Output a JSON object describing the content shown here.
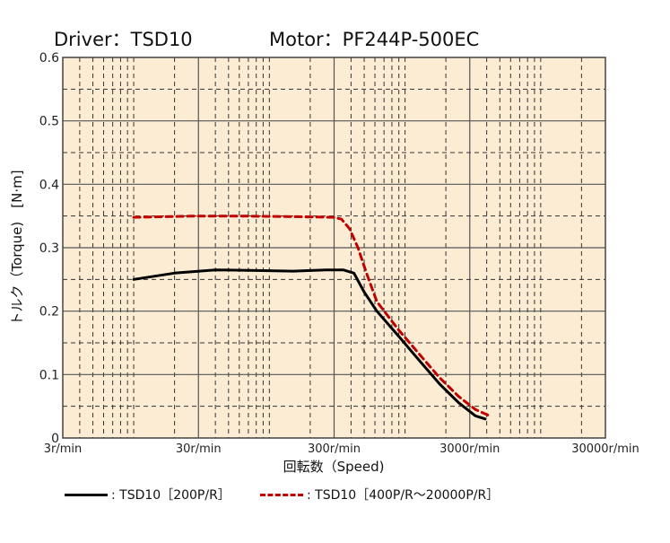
{
  "header": {
    "driver": "Driver：TSD10",
    "motor": "Motor：PF244P-500EC"
  },
  "chart_data": {
    "type": "line",
    "title": "",
    "xlabel": "回転数（Speed)",
    "ylabel": "トルク（Torque)　[N·m]",
    "x_scale": "log",
    "xlim": [
      3,
      30000
    ],
    "ylim": [
      0,
      0.6
    ],
    "x_ticks": [
      3,
      30,
      300,
      3000,
      30000
    ],
    "x_tick_labels": [
      "3r/min",
      "30r/min",
      "300r/min",
      "3000r/min",
      "30000r/min"
    ],
    "y_ticks": [
      0,
      0.1,
      0.2,
      0.3,
      0.4,
      0.5,
      0.6
    ],
    "y_tick_labels": [
      "0",
      "0.1",
      "0.2",
      "0.3",
      "0.4",
      "0.5",
      "0.6"
    ],
    "grid": true,
    "legend_position": "bottom",
    "series": [
      {
        "name": ": TSD10［200P/R］",
        "color": "#000000",
        "dash": false,
        "points": [
          [
            10,
            0.25
          ],
          [
            20,
            0.26
          ],
          [
            40,
            0.265
          ],
          [
            80,
            0.264
          ],
          [
            150,
            0.263
          ],
          [
            260,
            0.265
          ],
          [
            350,
            0.265
          ],
          [
            420,
            0.26
          ],
          [
            500,
            0.23
          ],
          [
            620,
            0.2
          ],
          [
            900,
            0.16
          ],
          [
            1300,
            0.12
          ],
          [
            1800,
            0.085
          ],
          [
            2500,
            0.055
          ],
          [
            3300,
            0.035
          ],
          [
            3900,
            0.03
          ]
        ]
      },
      {
        "name": ": TSD10［400P/R～20000P/R］",
        "color": "#c00000",
        "dash": true,
        "points": [
          [
            10,
            0.348
          ],
          [
            30,
            0.35
          ],
          [
            60,
            0.35
          ],
          [
            150,
            0.349
          ],
          [
            300,
            0.348
          ],
          [
            340,
            0.345
          ],
          [
            390,
            0.33
          ],
          [
            450,
            0.3
          ],
          [
            520,
            0.26
          ],
          [
            620,
            0.215
          ],
          [
            900,
            0.17
          ],
          [
            1300,
            0.13
          ],
          [
            1800,
            0.095
          ],
          [
            2500,
            0.065
          ],
          [
            3300,
            0.045
          ],
          [
            4200,
            0.035
          ]
        ]
      }
    ]
  }
}
